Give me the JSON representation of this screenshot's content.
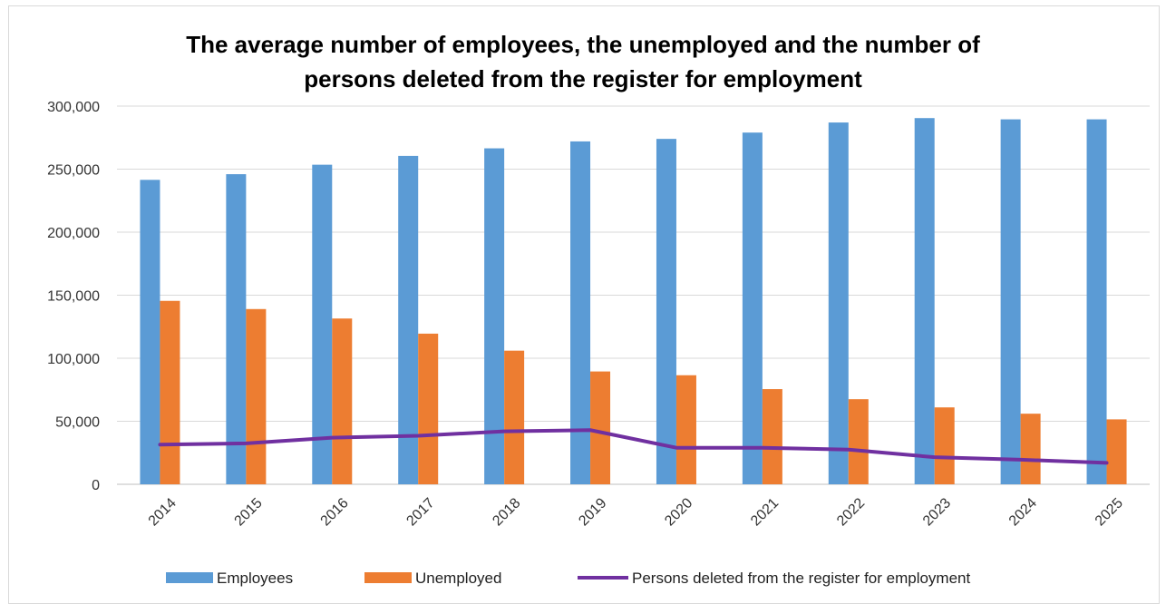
{
  "chart_data": {
    "type": "bar",
    "title_line1": "The average number of employees, the unemployed and the number of",
    "title_line2": "persons deleted from the register for employment",
    "categories": [
      "2014",
      "2015",
      "2016",
      "2017",
      "2018",
      "2019",
      "2020",
      "2021",
      "2022",
      "2023",
      "2024",
      "2025"
    ],
    "series": [
      {
        "name": "Employees",
        "type": "bar",
        "color": "#5b9bd5",
        "values": [
          241500,
          246000,
          253500,
          260500,
          266500,
          272000,
          274000,
          279000,
          287000,
          290500,
          289500,
          289500
        ]
      },
      {
        "name": "Unemployed",
        "type": "bar",
        "color": "#ed7d31",
        "values": [
          145500,
          139000,
          131500,
          119500,
          106000,
          89500,
          86500,
          75500,
          67500,
          61000,
          56000,
          51500
        ]
      },
      {
        "name": "Persons deleted from the register for employment",
        "type": "line",
        "color": "#7030a0",
        "values": [
          31500,
          32500,
          37000,
          38500,
          42000,
          43000,
          29000,
          29000,
          27500,
          21500,
          19500,
          17000
        ]
      }
    ],
    "ylim": [
      0,
      300000
    ],
    "yticks": [
      0,
      50000,
      100000,
      150000,
      200000,
      250000,
      300000
    ],
    "ytick_labels": [
      "0",
      "50,000",
      "100,000",
      "150,000",
      "200,000",
      "250,000",
      "300,000"
    ],
    "grid": true,
    "legend_position": "bottom",
    "xlabel": "",
    "ylabel": ""
  }
}
